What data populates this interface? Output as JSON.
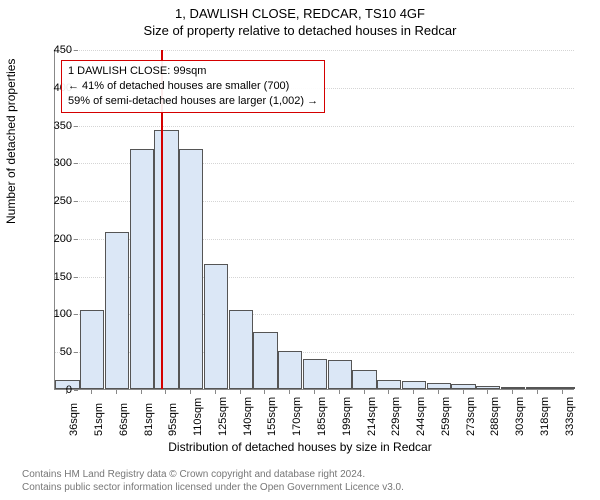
{
  "title_line1": "1, DAWLISH CLOSE, REDCAR, TS10 4GF",
  "title_line2": "Size of property relative to detached houses in Redcar",
  "chart": {
    "type": "histogram",
    "ylabel": "Number of detached properties",
    "xaxis_title": "Distribution of detached houses by size in Redcar",
    "ylim": [
      0,
      450
    ],
    "ytick_step": 50,
    "yticks": [
      0,
      50,
      100,
      150,
      200,
      250,
      300,
      350,
      400,
      450
    ],
    "categories": [
      "36sqm",
      "51sqm",
      "66sqm",
      "81sqm",
      "95sqm",
      "110sqm",
      "125sqm",
      "140sqm",
      "155sqm",
      "170sqm",
      "185sqm",
      "199sqm",
      "214sqm",
      "229sqm",
      "244sqm",
      "259sqm",
      "273sqm",
      "288sqm",
      "303sqm",
      "318sqm",
      "333sqm"
    ],
    "values": [
      12,
      105,
      208,
      318,
      343,
      318,
      165,
      105,
      75,
      50,
      40,
      38,
      25,
      12,
      10,
      8,
      6,
      4,
      3,
      2,
      2
    ],
    "bar_fill": "#dbe7f6",
    "bar_border": "#555555",
    "grid_color": "#d5d5d5",
    "axis_color": "#888888",
    "background_color": "#ffffff",
    "bar_width_ratio": 0.98,
    "label_fontsize": 11,
    "title_fontsize": 13,
    "marker": {
      "position_category_index": 4.27,
      "color": "#d40000"
    },
    "annotation": {
      "line1": "1 DAWLISH CLOSE: 99sqm",
      "line2": "← 41% of detached houses are smaller (700)",
      "line3": "59% of semi-detached houses are larger (1,002) →",
      "border_color": "#d40000"
    }
  },
  "footer": {
    "line1": "Contains HM Land Registry data © Crown copyright and database right 2024.",
    "line2": "Contains public sector information licensed under the Open Government Licence v3.0."
  }
}
